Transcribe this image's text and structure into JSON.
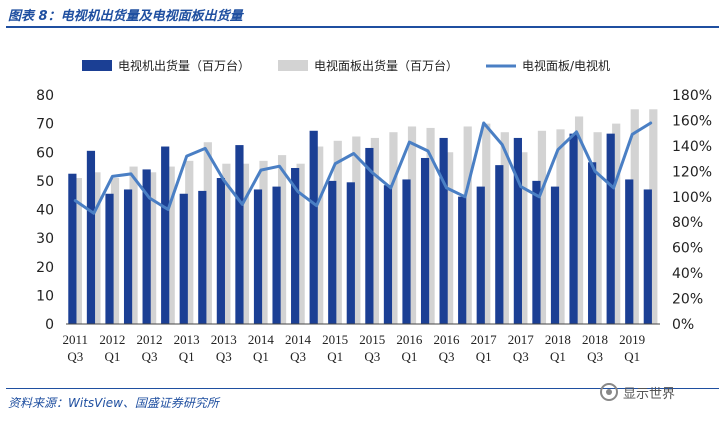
{
  "header": {
    "title": "图表 8：电视机出货量及电视面板出货量"
  },
  "footer": {
    "source": "资料来源：WitsView、国盛证券研究所",
    "watermark": "显示世界",
    "watermark_icon": "wechat-icon"
  },
  "chart_data": {
    "type": "bar",
    "categories": [
      "2011Q3",
      "2011Q4",
      "2012Q1",
      "2012Q2",
      "2012Q3",
      "2012Q4",
      "2013Q1",
      "2013Q2",
      "2013Q3",
      "2013Q4",
      "2014Q1",
      "2014Q2",
      "2014Q3",
      "2014Q4",
      "2015Q1",
      "2015Q2",
      "2015Q3",
      "2015Q4",
      "2016Q1",
      "2016Q2",
      "2016Q3",
      "2016Q4",
      "2017Q1",
      "2017Q2",
      "2017Q3",
      "2017Q4",
      "2018Q1",
      "2018Q2",
      "2018Q3",
      "2018Q4",
      "2019Q1",
      "2019Q2"
    ],
    "x_tick_labels": [
      {
        "year": "2011",
        "quarter": "Q3"
      },
      {
        "year": "2012",
        "quarter": "Q1"
      },
      {
        "year": "2012",
        "quarter": "Q3"
      },
      {
        "year": "2013",
        "quarter": "Q1"
      },
      {
        "year": "2013",
        "quarter": "Q3"
      },
      {
        "year": "2014",
        "quarter": "Q1"
      },
      {
        "year": "2014",
        "quarter": "Q3"
      },
      {
        "year": "2015",
        "quarter": "Q1"
      },
      {
        "year": "2015",
        "quarter": "Q3"
      },
      {
        "year": "2016",
        "quarter": "Q1"
      },
      {
        "year": "2016",
        "quarter": "Q3"
      },
      {
        "year": "2017",
        "quarter": "Q1"
      },
      {
        "year": "2017",
        "quarter": "Q3"
      },
      {
        "year": "2018",
        "quarter": "Q1"
      },
      {
        "year": "2018",
        "quarter": "Q3"
      },
      {
        "year": "2019",
        "quarter": "Q1"
      }
    ],
    "series": [
      {
        "name": "电视机出货量（百万台）",
        "type": "bar",
        "axis": "left",
        "color": "#1b3f94",
        "values": [
          52.5,
          60.5,
          45.5,
          47.0,
          54.0,
          62.0,
          45.5,
          46.5,
          51.0,
          62.5,
          47.0,
          48.0,
          54.5,
          67.5,
          50.0,
          49.5,
          61.5,
          48.5,
          50.5,
          58.0,
          65.0,
          44.5,
          48.0,
          55.5,
          65.0,
          50.0,
          48.0,
          66.5,
          56.5,
          66.5,
          50.5,
          47.0
        ]
      },
      {
        "name": "电视面板出货量（百万台）",
        "type": "bar",
        "axis": "left",
        "color": "#d3d3d3",
        "values": [
          51.0,
          53.0,
          51.0,
          55.0,
          53.0,
          55.0,
          57.0,
          63.5,
          56.0,
          56.0,
          57.0,
          59.0,
          56.0,
          62.0,
          64.0,
          65.5,
          65.0,
          67.0,
          69.0,
          68.5,
          60.0,
          69.0,
          70.0,
          67.0,
          60.0,
          67.5,
          68.0,
          72.5,
          67.0,
          70.0,
          75.0,
          75.0
        ]
      },
      {
        "name": "电视面板/电视机",
        "type": "line",
        "axis": "right",
        "color": "#4a7fc4",
        "values": [
          97,
          87,
          116,
          118,
          99,
          90,
          132,
          138,
          113,
          94,
          121,
          124,
          104,
          93,
          126,
          134,
          119,
          107,
          143,
          136,
          107,
          100,
          158,
          141,
          108,
          100,
          137,
          151,
          120,
          107,
          149,
          158
        ]
      }
    ],
    "ylim": [
      0,
      80
    ],
    "yticks": [
      0,
      10,
      20,
      30,
      40,
      50,
      60,
      70,
      80
    ],
    "y2lim": [
      0,
      180
    ],
    "y2ticks": [
      "0%",
      "20%",
      "40%",
      "60%",
      "80%",
      "100%",
      "120%",
      "140%",
      "160%",
      "180%"
    ],
    "grid": false,
    "legend_position": "top"
  }
}
